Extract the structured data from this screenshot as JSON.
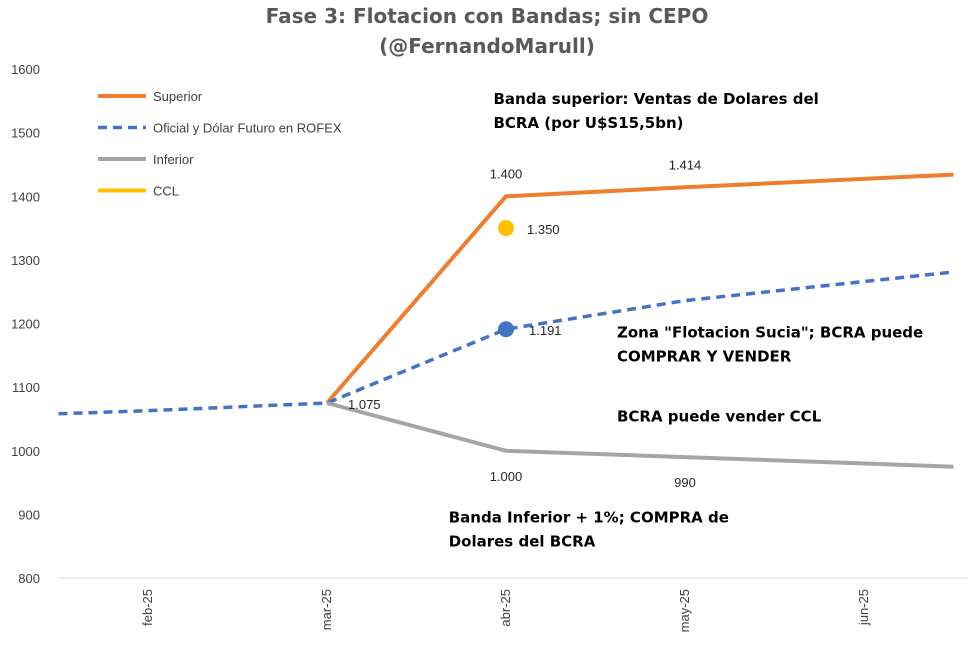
{
  "chart_data": {
    "type": "line",
    "title_lines": [
      "Fase 3: Flotacion con Bandas; sin CEPO",
      "(@FernandoMarull)"
    ],
    "categories": [
      "feb-25",
      "mar-25",
      "abr-25",
      "may-25",
      "jun-25"
    ],
    "x": [
      0,
      1,
      2,
      3,
      4
    ],
    "ylim": [
      800,
      1600
    ],
    "yticks": [
      800,
      900,
      1000,
      1100,
      1200,
      1300,
      1400,
      1500,
      1600
    ],
    "grid": false,
    "legend_position": "top-left",
    "series": [
      {
        "name": "Superior",
        "color": "#ED7D31",
        "style": "solid",
        "points": [
          [
            1,
            1075
          ],
          [
            2,
            1400
          ],
          [
            3,
            1414
          ],
          [
            4.5,
            1434
          ]
        ]
      },
      {
        "name": "Oficial y Dólar Futuro en ROFEX",
        "color": "#4472C4",
        "style": "dashed",
        "points": [
          [
            -0.5,
            1058
          ],
          [
            0,
            1063
          ],
          [
            1,
            1075
          ],
          [
            2,
            1191
          ],
          [
            3,
            1236
          ],
          [
            4.5,
            1281
          ]
        ]
      },
      {
        "name": "Inferior",
        "color": "#A5A5A5",
        "style": "solid",
        "points": [
          [
            1,
            1075
          ],
          [
            2,
            1000
          ],
          [
            3,
            990
          ],
          [
            4.5,
            975
          ]
        ]
      },
      {
        "name": "CCL",
        "color": "#FFC000",
        "style": "marker",
        "points": [
          [
            2,
            1350
          ]
        ]
      }
    ],
    "markers": [
      {
        "series": "Oficial y Dólar Futuro en ROFEX",
        "x": 2,
        "y": 1191,
        "color": "#4472C4"
      },
      {
        "series": "CCL",
        "x": 2,
        "y": 1350,
        "color": "#FFC000"
      }
    ],
    "data_labels": [
      {
        "text": "1.400",
        "x": 2,
        "y": 1400,
        "pos": "above"
      },
      {
        "text": "1.414",
        "x": 3,
        "y": 1414,
        "pos": "above"
      },
      {
        "text": "1.350",
        "x": 2,
        "y": 1350,
        "pos": "right"
      },
      {
        "text": "1.191",
        "x": 2,
        "y": 1191,
        "pos": "right-below"
      },
      {
        "text": "1.075",
        "x": 1,
        "y": 1075,
        "pos": "right"
      },
      {
        "text": "1.000",
        "x": 2,
        "y": 1000,
        "pos": "below"
      },
      {
        "text": "990",
        "x": 3,
        "y": 990,
        "pos": "below"
      }
    ],
    "annotations": [
      {
        "lines": [
          "Banda superior: Ventas de Dolares del",
          "BCRA (por U$S15,5bn)"
        ],
        "x": 1.93,
        "y": 1545
      },
      {
        "lines": [
          "Zona \"Flotacion Sucia\"; BCRA puede",
          "COMPRAR Y VENDER"
        ],
        "x": 2.62,
        "y": 1178
      },
      {
        "lines": [
          "BCRA puede vender CCL"
        ],
        "x": 2.62,
        "y": 1046
      },
      {
        "lines": [
          "Banda Inferior + 1%; COMPRA de",
          "Dolares del BCRA"
        ],
        "x": 1.68,
        "y": 887
      }
    ]
  }
}
